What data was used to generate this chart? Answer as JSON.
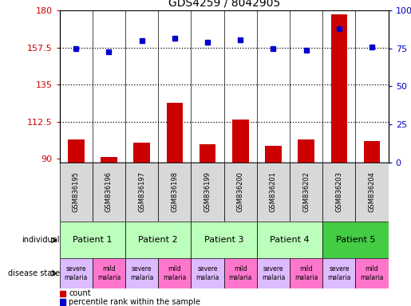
{
  "title": "GDS4259 / 8042905",
  "samples": [
    "GSM836195",
    "GSM836196",
    "GSM836197",
    "GSM836198",
    "GSM836199",
    "GSM836200",
    "GSM836201",
    "GSM836202",
    "GSM836203",
    "GSM836204"
  ],
  "counts": [
    102,
    91,
    100,
    124,
    99,
    114,
    98,
    102,
    178,
    101
  ],
  "percentile_ranks": [
    75,
    73,
    80,
    82,
    79,
    81,
    75,
    74,
    88,
    76
  ],
  "ylim_left": [
    88,
    180
  ],
  "ylim_right": [
    0,
    100
  ],
  "yticks_left": [
    90,
    112.5,
    135,
    157.5,
    180
  ],
  "yticks_right": [
    0,
    25,
    50,
    75,
    100
  ],
  "ytick_labels_left": [
    "90",
    "112.5",
    "135",
    "157.5",
    "180"
  ],
  "ytick_labels_right": [
    "0",
    "25",
    "50",
    "75",
    "100%"
  ],
  "hlines": [
    112.5,
    135,
    157.5
  ],
  "bar_color": "#cc0000",
  "dot_color": "#0000cc",
  "bar_width": 0.5,
  "patients": [
    {
      "label": "Patient 1",
      "cols": [
        0,
        1
      ],
      "color": "#bbffbb"
    },
    {
      "label": "Patient 2",
      "cols": [
        2,
        3
      ],
      "color": "#bbffbb"
    },
    {
      "label": "Patient 3",
      "cols": [
        4,
        5
      ],
      "color": "#bbffbb"
    },
    {
      "label": "Patient 4",
      "cols": [
        6,
        7
      ],
      "color": "#bbffbb"
    },
    {
      "label": "Patient 5",
      "cols": [
        8,
        9
      ],
      "color": "#44cc44"
    }
  ],
  "disease_states": [
    {
      "label": "severe\nmalaria",
      "col": 0,
      "color": "#ddbbff"
    },
    {
      "label": "mild\nmalaria",
      "col": 1,
      "color": "#ff77cc"
    },
    {
      "label": "severe\nmalaria",
      "col": 2,
      "color": "#ddbbff"
    },
    {
      "label": "mild\nmalaria",
      "col": 3,
      "color": "#ff77cc"
    },
    {
      "label": "severe\nmalaria",
      "col": 4,
      "color": "#ddbbff"
    },
    {
      "label": "mild\nmalaria",
      "col": 5,
      "color": "#ff77cc"
    },
    {
      "label": "severe\nmalaria",
      "col": 6,
      "color": "#ddbbff"
    },
    {
      "label": "mild\nmalaria",
      "col": 7,
      "color": "#ff77cc"
    },
    {
      "label": "severe\nmalaria",
      "col": 8,
      "color": "#ddbbff"
    },
    {
      "label": "mild\nmalaria",
      "col": 9,
      "color": "#ff77cc"
    }
  ],
  "sample_box_color": "#d8d8d8",
  "title_fontsize": 10,
  "left_axis_color": "#cc0000",
  "right_axis_color": "#0000cc"
}
